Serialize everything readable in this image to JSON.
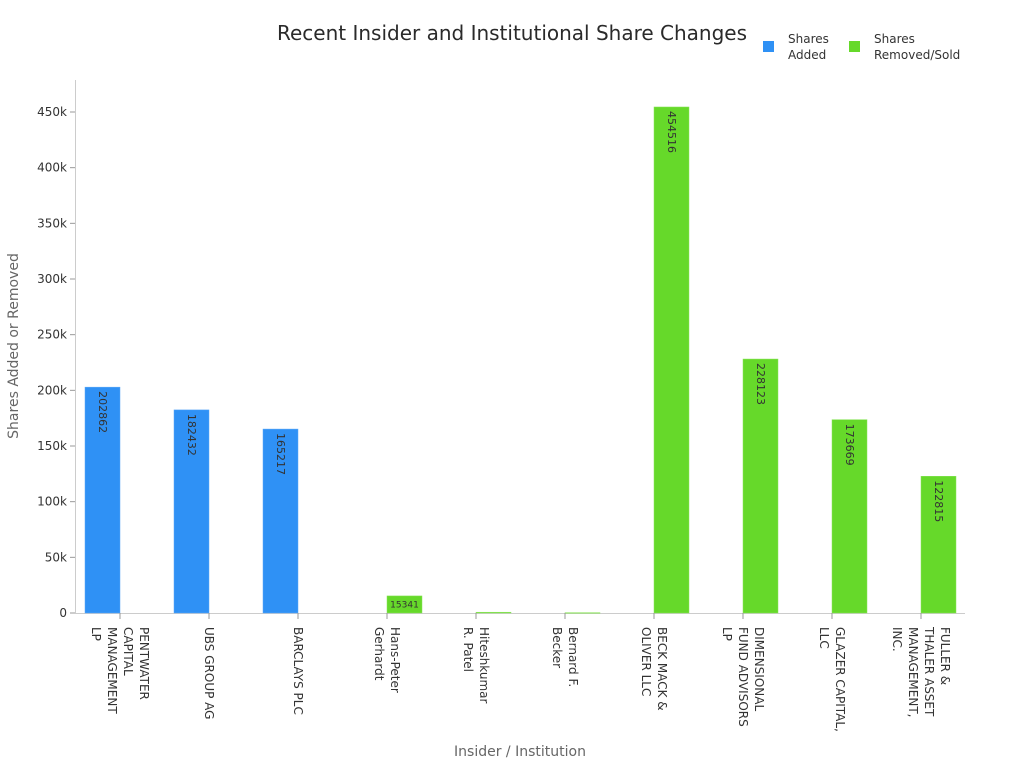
{
  "chart_data": {
    "type": "bar",
    "title": "Recent Insider and Institutional Share Changes",
    "xlabel": "Insider / Institution",
    "ylabel": "Shares Added or Removed",
    "ylim": [
      0,
      480000
    ],
    "yticks": [
      0,
      50000,
      100000,
      150000,
      200000,
      250000,
      300000,
      350000,
      400000,
      450000
    ],
    "ytick_labels": [
      "0",
      "50k",
      "100k",
      "150k",
      "200k",
      "250k",
      "300k",
      "350k",
      "400k",
      "450k"
    ],
    "grid": false,
    "legend_position": "top-right",
    "categories": [
      "PENTWATER\nCAPITAL\nMANAGEMENT\nLP",
      "UBS GROUP AG",
      "BARCLAYS PLC",
      "Hans-Peter\nGerhardt",
      "Hiteshkumar\nR. Patel",
      "Bernard F.\nBecker",
      "BECK MACK &\nOLIVER LLC",
      "DIMENSIONAL\nFUND ADVISORS\nLP",
      "GLAZER CAPITAL,\nLLC",
      "FULLER &\nTHALER ASSET\nMANAGEMENT,\nINC."
    ],
    "series": [
      {
        "name": "Shares Added",
        "color": "#2f91f5",
        "values": [
          202862,
          182432,
          165217,
          0,
          0,
          0,
          0,
          0,
          0,
          0
        ]
      },
      {
        "name": "Shares Removed/Sold",
        "color": "#66d92a",
        "values": [
          0,
          0,
          0,
          15341,
          700,
          300,
          454516,
          228123,
          173669,
          122815
        ]
      }
    ]
  }
}
